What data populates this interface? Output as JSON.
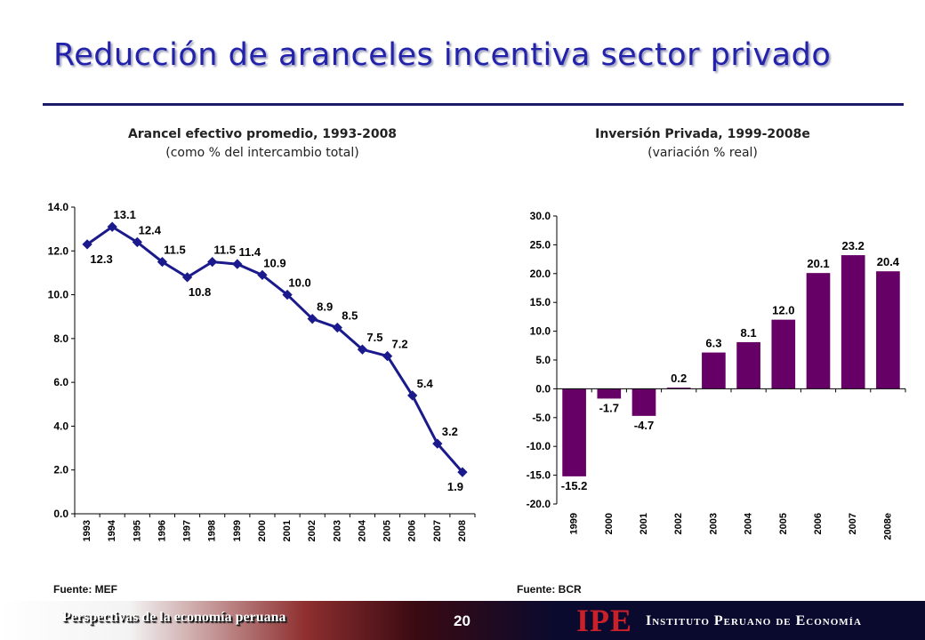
{
  "title": "Reducción de aranceles incentiva sector privado",
  "footer": {
    "left_text": "Perspectivas de la economía peruana",
    "page_number": "20",
    "logo": "IPE",
    "institute": "Instituto Peruano de Economía"
  },
  "chart_data": [
    {
      "type": "line",
      "title": "Arancel efectivo promedio, 1993-2008",
      "subtitle": "(como % del intercambio total)",
      "source": "Fuente: MEF",
      "x": [
        "1993",
        "1994",
        "1995",
        "1996",
        "1997",
        "1998",
        "1999",
        "2000",
        "2001",
        "2002",
        "2003",
        "2004",
        "2005",
        "2006",
        "2007",
        "2008"
      ],
      "values": [
        12.3,
        13.1,
        12.4,
        11.5,
        10.8,
        11.5,
        11.4,
        10.9,
        10.0,
        8.9,
        8.5,
        7.5,
        7.2,
        5.4,
        3.2,
        1.9
      ],
      "data_labels": [
        "12.3",
        "13.1",
        "12.4",
        "11.5",
        "10.8",
        "11.5",
        "11.4",
        "10.9",
        "10.0",
        "8.9",
        "8.5",
        "7.5",
        "7.2",
        "5.4",
        "3.2",
        "1.9"
      ],
      "yticks": [
        "0.0",
        "2.0",
        "4.0",
        "6.0",
        "8.0",
        "10.0",
        "12.0",
        "14.0"
      ],
      "ylim": [
        0,
        14
      ],
      "color": "#1a1a8c",
      "grid": false,
      "legend": "none"
    },
    {
      "type": "bar",
      "title": "Inversión Privada, 1999-2008e",
      "subtitle": "(variación % real)",
      "source": "Fuente: BCR",
      "categories": [
        "1999",
        "2000",
        "2001",
        "2002",
        "2003",
        "2004",
        "2005",
        "2006",
        "2007",
        "2008e"
      ],
      "values": [
        -15.2,
        -1.7,
        -4.7,
        0.2,
        6.3,
        8.1,
        12.0,
        20.1,
        23.2,
        20.4
      ],
      "data_labels": [
        "-15.2",
        "-1.7",
        "-4.7",
        "0.2",
        "6.3",
        "8.1",
        "12.0",
        "20.1",
        "23.2",
        "20.4"
      ],
      "yticks": [
        "-20.0",
        "-15.0",
        "-10.0",
        "-5.0",
        "0.0",
        "5.0",
        "10.0",
        "15.0",
        "20.0",
        "25.0",
        "30.0"
      ],
      "ylim": [
        -20,
        30
      ],
      "color": "#660066",
      "grid": false,
      "legend": "none"
    }
  ]
}
